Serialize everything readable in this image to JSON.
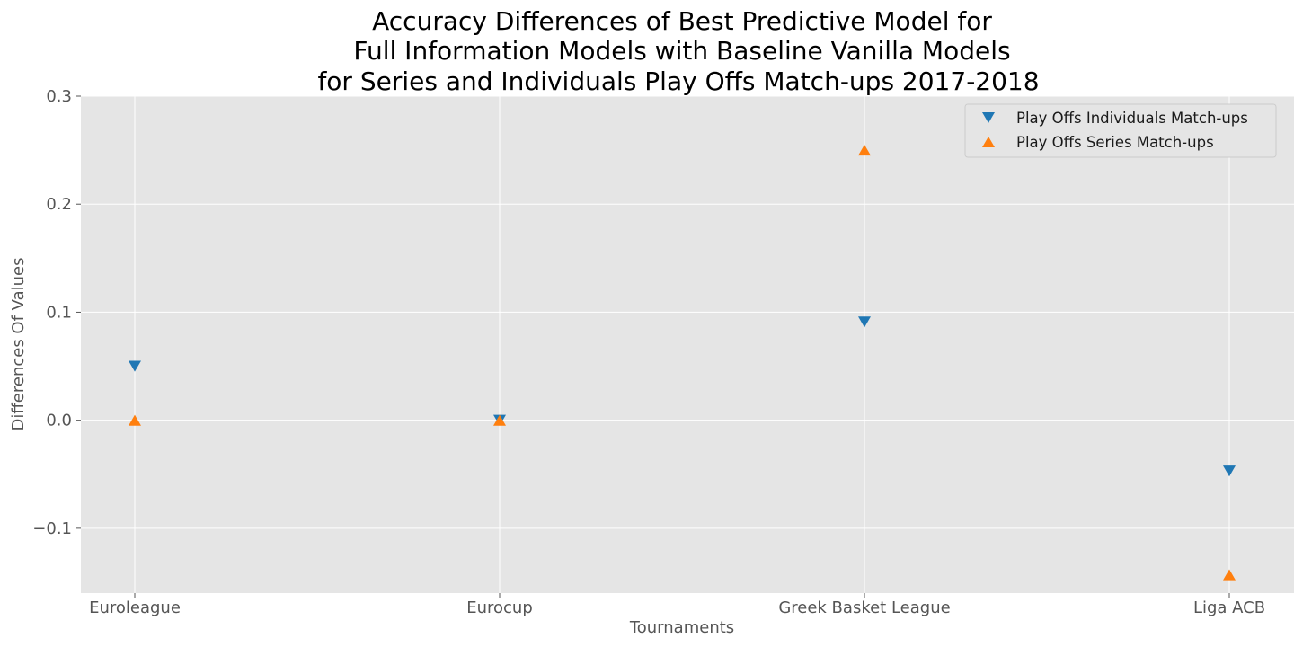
{
  "chart_data": {
    "type": "scatter",
    "title_lines": [
      "Accuracy Differences of Best Predictive Model for",
      "Full Information Models  with Baseline Vanilla Models",
      "for Series and Individuals Play Offs Match-ups 2017-2018"
    ],
    "xlabel": "Tournaments",
    "ylabel": "Differences Of Values",
    "categories": [
      "Euroleague",
      "Eurocup",
      "Greek Basket League",
      "Liga ACB"
    ],
    "ylim": [
      -0.16,
      0.3
    ],
    "yticks": [
      -0.1,
      0.0,
      0.1,
      0.2,
      0.3
    ],
    "ytick_labels": [
      "−0.1",
      "0.0",
      "0.1",
      "0.2",
      "0.3"
    ],
    "grid": true,
    "legend_position": "top-right",
    "series": [
      {
        "name": "Play Offs Individuals Match-ups",
        "marker": "triangle-down",
        "color": "#1f77b4",
        "values": [
          0.05,
          0.0,
          0.091,
          -0.047
        ]
      },
      {
        "name": "Play Offs Series Match-ups",
        "marker": "triangle-up",
        "color": "#ff7f0e",
        "values": [
          0.0,
          0.0,
          0.25,
          -0.143
        ]
      }
    ],
    "background_color": "#e5e5e5",
    "grid_color": "#ffffff"
  }
}
